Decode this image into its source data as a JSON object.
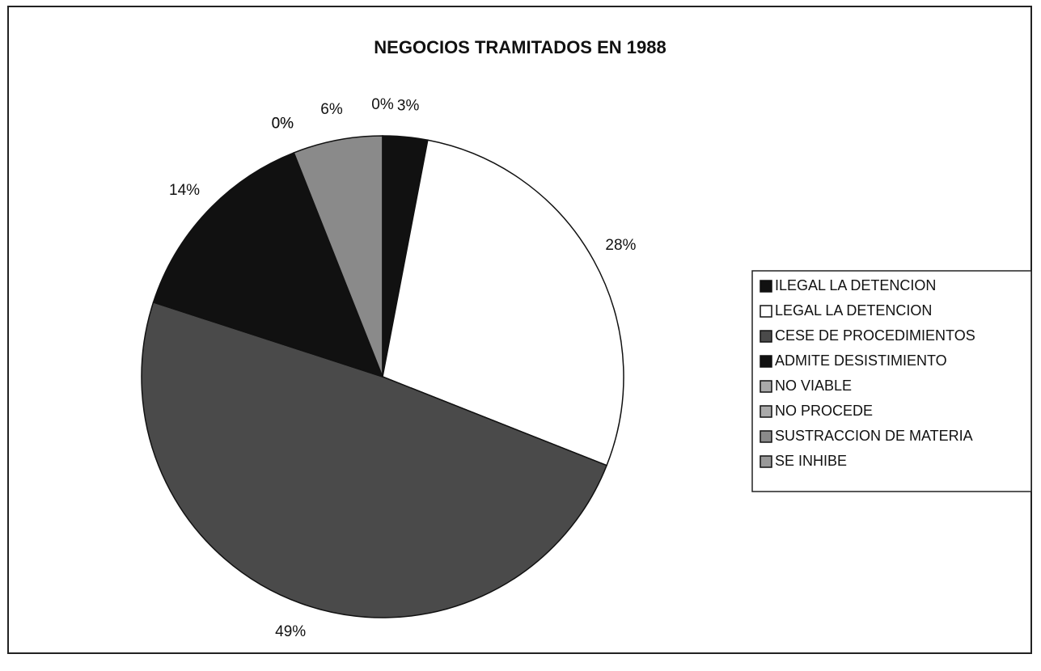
{
  "chart_data": {
    "type": "pie",
    "title": "NEGOCIOS TRAMITADOS EN 1988",
    "categories": [
      "ILEGAL LA DETENCION",
      "LEGAL LA DETENCION",
      "CESE DE PROCEDIMIENTOS",
      "ADMITE DESISTIMIENTO",
      "NO VIABLE",
      "NO PROCEDE",
      "SUSTRACCION DE MATERIA",
      "SE INHIBE"
    ],
    "values": [
      3,
      28,
      49,
      14,
      0,
      0,
      6,
      0
    ],
    "value_labels": [
      "3%",
      "28%",
      "49%",
      "14%",
      "0%",
      "0%",
      "6%",
      "0%"
    ],
    "colors": [
      "#111111",
      "#ffffff",
      "#4a4a4a",
      "#111111",
      "#aaaaaa",
      "#aaaaaa",
      "#8a8a8a",
      "#999999"
    ],
    "legend": "right"
  }
}
